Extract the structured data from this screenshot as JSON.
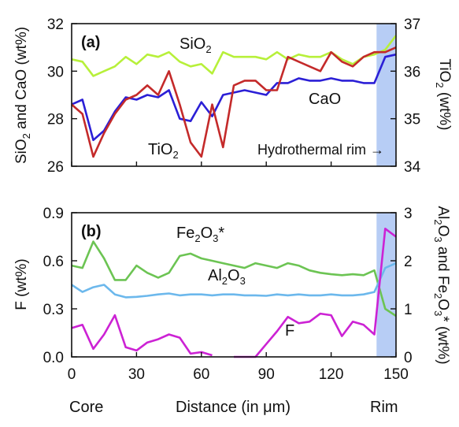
{
  "chart_data": [
    {
      "type": "line",
      "panel_label": "(a)",
      "ylabel_left": "SiO2 and CaO (wt%)",
      "ylabel_right": "TiO2 (wt%)",
      "ylim_left": [
        26,
        32
      ],
      "ylim_right": [
        34,
        37
      ],
      "yticks_left": [
        "26",
        "28",
        "30",
        "32"
      ],
      "yticks_right": [
        "34",
        "35",
        "36",
        "37"
      ],
      "xlim": [
        0,
        150
      ],
      "shaded_region": {
        "x_start": 141,
        "x_end": 150,
        "color": "#b7cdf5"
      },
      "annotation": "Hydrothermal rim →",
      "series": [
        {
          "name": "SiO2",
          "label_text": "SiO",
          "label_sub": "2",
          "axis": "left",
          "color": "#b7f03a",
          "x": [
            0,
            5,
            10,
            15,
            20,
            25,
            30,
            35,
            40,
            45,
            50,
            55,
            60,
            65,
            70,
            75,
            80,
            85,
            90,
            95,
            100,
            105,
            110,
            115,
            120,
            125,
            130,
            135,
            140,
            145,
            150
          ],
          "y": [
            30.5,
            30.4,
            29.8,
            30.0,
            30.2,
            30.6,
            30.3,
            30.7,
            30.6,
            30.8,
            30.4,
            30.2,
            30.3,
            29.9,
            30.8,
            30.6,
            30.6,
            30.6,
            30.5,
            30.8,
            30.5,
            30.7,
            30.6,
            30.6,
            30.8,
            30.5,
            30.3,
            30.6,
            30.7,
            30.9,
            31.5
          ]
        },
        {
          "name": "CaO",
          "label_text": "CaO",
          "label_sub": "",
          "axis": "left",
          "color": "#2b1fd6",
          "x": [
            0,
            5,
            10,
            15,
            20,
            25,
            30,
            35,
            40,
            45,
            50,
            55,
            60,
            65,
            70,
            75,
            80,
            85,
            90,
            95,
            100,
            105,
            110,
            115,
            120,
            125,
            130,
            135,
            140,
            145,
            150
          ],
          "y": [
            28.6,
            28.8,
            27.1,
            27.5,
            28.3,
            28.9,
            28.8,
            29.0,
            28.9,
            29.2,
            28.0,
            27.9,
            28.7,
            28.1,
            29.0,
            29.1,
            29.2,
            29.1,
            29.0,
            29.5,
            29.5,
            29.7,
            29.6,
            29.6,
            29.7,
            29.6,
            29.6,
            29.5,
            29.5,
            30.6,
            30.7
          ]
        },
        {
          "name": "TiO2",
          "label_text": "TiO",
          "label_sub": "2",
          "axis": "right",
          "color": "#c42a2a",
          "x": [
            0,
            5,
            10,
            15,
            20,
            25,
            30,
            35,
            40,
            45,
            50,
            55,
            60,
            65,
            70,
            75,
            80,
            85,
            90,
            95,
            100,
            105,
            110,
            115,
            120,
            125,
            130,
            135,
            140,
            145,
            150
          ],
          "y": [
            35.3,
            35.1,
            34.2,
            34.7,
            35.1,
            35.4,
            35.5,
            35.7,
            35.5,
            36.0,
            35.3,
            34.5,
            34.2,
            35.3,
            34.4,
            35.7,
            35.8,
            35.8,
            35.6,
            35.6,
            36.3,
            36.2,
            36.1,
            36.0,
            36.4,
            36.2,
            36.1,
            36.3,
            36.4,
            36.4,
            36.5
          ]
        }
      ]
    },
    {
      "type": "line",
      "panel_label": "(b)",
      "ylabel_left": "F (wt%)",
      "ylabel_right": "Al2O3 and Fe2O3* (wt%)",
      "ylim_left": [
        0,
        0.9
      ],
      "ylim_right": [
        0,
        3
      ],
      "yticks_left": [
        "0.0",
        "0.3",
        "0.6",
        "0.9"
      ],
      "yticks_right": [
        "0",
        "1",
        "2",
        "3"
      ],
      "xlim": [
        0,
        150
      ],
      "xticks": [
        "0",
        "30",
        "60",
        "90",
        "120",
        "150"
      ],
      "xlabel": "Distance (in μm)",
      "x_endpoint_labels": {
        "left": "Core",
        "right": "Rim"
      },
      "shaded_region": {
        "x_start": 141,
        "x_end": 150,
        "color": "#b7cdf5"
      },
      "series": [
        {
          "name": "Fe2O3*",
          "label_text": "Fe",
          "label_sub": "2",
          "label_text2": "O",
          "label_sub2": "3",
          "label_tail": "*",
          "axis": "right",
          "color": "#6cc453",
          "x": [
            0,
            5,
            10,
            15,
            20,
            25,
            30,
            35,
            40,
            45,
            50,
            55,
            60,
            65,
            70,
            75,
            80,
            85,
            90,
            95,
            100,
            105,
            110,
            115,
            120,
            125,
            130,
            135,
            140,
            145,
            150
          ],
          "y": [
            1.9,
            1.85,
            2.4,
            2.05,
            1.6,
            1.6,
            1.9,
            1.75,
            1.65,
            1.75,
            2.1,
            2.15,
            2.05,
            2.0,
            1.95,
            1.9,
            1.85,
            1.95,
            1.9,
            1.85,
            1.95,
            1.9,
            1.8,
            1.75,
            1.72,
            1.7,
            1.72,
            1.7,
            1.8,
            1.0,
            0.85
          ]
        },
        {
          "name": "Al2O3",
          "label_text": "Al",
          "label_sub": "2",
          "label_text2": "O",
          "label_sub2": "3",
          "label_tail": "",
          "axis": "right",
          "color": "#6cb8ec",
          "x": [
            0,
            5,
            10,
            15,
            20,
            25,
            30,
            35,
            40,
            45,
            50,
            55,
            60,
            65,
            70,
            75,
            80,
            85,
            90,
            95,
            100,
            105,
            110,
            115,
            120,
            125,
            130,
            135,
            140,
            145,
            150
          ],
          "y": [
            1.5,
            1.35,
            1.45,
            1.5,
            1.3,
            1.24,
            1.25,
            1.27,
            1.3,
            1.32,
            1.28,
            1.3,
            1.3,
            1.28,
            1.3,
            1.3,
            1.28,
            1.28,
            1.27,
            1.3,
            1.28,
            1.3,
            1.28,
            1.28,
            1.3,
            1.28,
            1.28,
            1.3,
            1.35,
            1.85,
            1.95
          ]
        },
        {
          "name": "F",
          "label_text": "F",
          "label_sub": "",
          "axis": "left",
          "color": "#cc22d4",
          "segments": [
            {
              "x": [
                0,
                5,
                10,
                15,
                20,
                25,
                30,
                35,
                40,
                45,
                50,
                55,
                60,
                65
              ],
              "y": [
                0.18,
                0.2,
                0.05,
                0.14,
                0.26,
                0.06,
                0.04,
                0.09,
                0.11,
                0.14,
                0.12,
                0.02,
                0.03,
                0.01
              ]
            },
            {
              "x": [
                75,
                80,
                85,
                90,
                95,
                100,
                105,
                110,
                115,
                120,
                125,
                130,
                135,
                140,
                145,
                150
              ],
              "y": [
                0.0,
                0.0,
                0.0,
                0.08,
                0.16,
                0.25,
                0.21,
                0.22,
                0.27,
                0.26,
                0.13,
                0.22,
                0.2,
                0.14,
                0.8,
                0.75
              ]
            }
          ]
        }
      ]
    }
  ]
}
